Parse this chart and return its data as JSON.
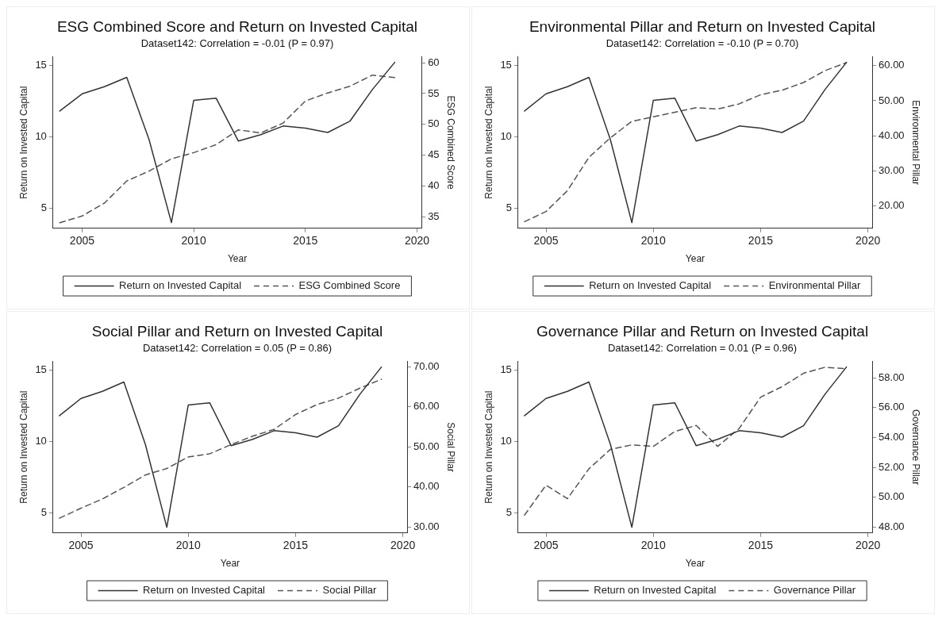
{
  "chart_data": [
    {
      "type": "line",
      "title": "ESG Combined Score and Return on Invested Capital",
      "subtitle": "Dataset142: Correlation = -0.01 (P = 0.97)",
      "xlabel": "Year",
      "ylabel": "Return on Invested Capital",
      "y2label": "ESG Combined Score",
      "x": [
        2004,
        2005,
        2006,
        2007,
        2008,
        2009,
        2010,
        2011,
        2012,
        2013,
        2014,
        2015,
        2016,
        2017,
        2018,
        2019
      ],
      "xlim": [
        2003.7,
        2020.2
      ],
      "xticks": [
        2005,
        2010,
        2015,
        2020
      ],
      "ylim": [
        3.6,
        15.6
      ],
      "yticks": [
        5,
        10,
        15
      ],
      "y2lim": [
        33.1,
        61
      ],
      "y2ticks": [
        35,
        40,
        45,
        50,
        55,
        60
      ],
      "legend": "bottom",
      "series": [
        {
          "name": "Return on Invested Capital",
          "color": "#333333",
          "line_style": "solid",
          "values": [
            11.8,
            13.0,
            13.5,
            14.15,
            9.8,
            4.0,
            12.55,
            12.7,
            9.7,
            10.15,
            10.75,
            10.6,
            10.3,
            11.1,
            13.3,
            15.2
          ]
        },
        {
          "name": "ESG Combined Score",
          "color": "#555555",
          "line_style": "dashed",
          "axis": "y2",
          "values": [
            34.0,
            35.1,
            37.2,
            40.8,
            42.4,
            44.4,
            45.4,
            46.7,
            49.1,
            48.6,
            50.2,
            53.8,
            55.1,
            56.2,
            58.0,
            57.6
          ]
        }
      ]
    },
    {
      "type": "line",
      "title": "Environmental Pillar and Return on Invested Capital",
      "subtitle": "Dataset142: Correlation = -0.10 (P = 0.70)",
      "xlabel": "Year",
      "ylabel": "Return on Invested Capital",
      "y2label": "Environmental Pillar",
      "x": [
        2004,
        2005,
        2006,
        2007,
        2008,
        2009,
        2010,
        2011,
        2012,
        2013,
        2014,
        2015,
        2016,
        2017,
        2018,
        2019
      ],
      "xlim": [
        2003.7,
        2020.2
      ],
      "xticks": [
        2005,
        2010,
        2015,
        2020
      ],
      "ylim": [
        3.6,
        15.6
      ],
      "yticks": [
        5,
        10,
        15
      ],
      "y2lim": [
        13.5,
        62.6
      ],
      "y2ticks": [
        {
          "value": 20,
          "label": "20.00"
        },
        {
          "value": 30,
          "label": "30.00"
        },
        {
          "value": 40,
          "label": "40.00"
        },
        {
          "value": 50,
          "label": "50.00"
        },
        {
          "value": 60,
          "label": "60.00"
        }
      ],
      "legend": "bottom",
      "series": [
        {
          "name": "Return on Invested Capital",
          "color": "#333333",
          "line_style": "solid",
          "values": [
            11.8,
            13.0,
            13.5,
            14.15,
            9.8,
            4.0,
            12.55,
            12.7,
            9.7,
            10.15,
            10.75,
            10.6,
            10.3,
            11.1,
            13.3,
            15.2
          ]
        },
        {
          "name": "Environmental Pillar",
          "color": "#555555",
          "line_style": "dashed",
          "axis": "y2",
          "values": [
            15.4,
            18.3,
            24.3,
            33.8,
            39.4,
            44.1,
            45.4,
            46.7,
            48.0,
            47.6,
            49.1,
            51.7,
            53.0,
            55.2,
            58.6,
            60.9
          ]
        }
      ]
    },
    {
      "type": "line",
      "title": "Social Pillar and Return on Invested Capital",
      "subtitle": "Dataset142: Correlation = 0.05 (P = 0.86)",
      "xlabel": "Year",
      "ylabel": "Return on Invested Capital",
      "y2label": "Social Pillar",
      "x": [
        2004,
        2005,
        2006,
        2007,
        2008,
        2009,
        2010,
        2011,
        2012,
        2013,
        2014,
        2015,
        2016,
        2017,
        2018,
        2019
      ],
      "xlim": [
        2003.7,
        2020.2
      ],
      "xticks": [
        2005,
        2010,
        2015,
        2020
      ],
      "ylim": [
        3.6,
        15.6
      ],
      "yticks": [
        5,
        10,
        15
      ],
      "y2lim": [
        28.5,
        71.4
      ],
      "y2ticks": [
        {
          "value": 30,
          "label": "30.00"
        },
        {
          "value": 40,
          "label": "40.00"
        },
        {
          "value": 50,
          "label": "50.00"
        },
        {
          "value": 60,
          "label": "60.00"
        },
        {
          "value": 70,
          "label": "70.00"
        }
      ],
      "legend": "bottom",
      "series": [
        {
          "name": "Return on Invested Capital",
          "color": "#333333",
          "line_style": "solid",
          "values": [
            11.8,
            13.0,
            13.5,
            14.15,
            9.8,
            4.0,
            12.55,
            12.7,
            9.7,
            10.15,
            10.75,
            10.6,
            10.3,
            11.1,
            13.3,
            15.2
          ]
        },
        {
          "name": "Social Pillar",
          "color": "#555555",
          "line_style": "dashed",
          "axis": "y2",
          "values": [
            32.2,
            34.7,
            37.0,
            39.9,
            43.0,
            44.6,
            47.5,
            48.3,
            50.6,
            52.7,
            54.4,
            58.1,
            60.6,
            62.2,
            64.7,
            66.9
          ]
        }
      ]
    },
    {
      "type": "line",
      "title": "Governance Pillar and Return on Invested Capital",
      "subtitle": "Dataset142: Correlation = 0.01 (P = 0.96)",
      "xlabel": "Year",
      "ylabel": "Return on Invested Capital",
      "y2label": "Governance Pillar",
      "x": [
        2004,
        2005,
        2006,
        2007,
        2008,
        2009,
        2010,
        2011,
        2012,
        2013,
        2014,
        2015,
        2016,
        2017,
        2018,
        2019
      ],
      "xlim": [
        2003.7,
        2020.2
      ],
      "xticks": [
        2005,
        2010,
        2015,
        2020
      ],
      "ylim": [
        3.6,
        15.6
      ],
      "yticks": [
        5,
        10,
        15
      ],
      "y2lim": [
        47.6,
        59.1
      ],
      "y2ticks": [
        {
          "value": 48,
          "label": "48.00"
        },
        {
          "value": 50,
          "label": "50.00"
        },
        {
          "value": 52,
          "label": "52.00"
        },
        {
          "value": 54,
          "label": "54.00"
        },
        {
          "value": 56,
          "label": "56.00"
        },
        {
          "value": 58,
          "label": "58.00"
        }
      ],
      "legend": "bottom",
      "series": [
        {
          "name": "Return on Invested Capital",
          "color": "#333333",
          "line_style": "solid",
          "values": [
            11.8,
            13.0,
            13.5,
            14.15,
            9.8,
            4.0,
            12.55,
            12.7,
            9.7,
            10.15,
            10.75,
            10.6,
            10.3,
            11.1,
            13.3,
            15.2
          ]
        },
        {
          "name": "Governance Pillar",
          "color": "#555555",
          "line_style": "dashed",
          "axis": "y2",
          "values": [
            48.8,
            50.8,
            49.9,
            51.9,
            53.2,
            53.5,
            53.4,
            54.4,
            54.8,
            53.4,
            54.6,
            56.7,
            57.4,
            58.3,
            58.7,
            58.6
          ]
        }
      ]
    }
  ]
}
